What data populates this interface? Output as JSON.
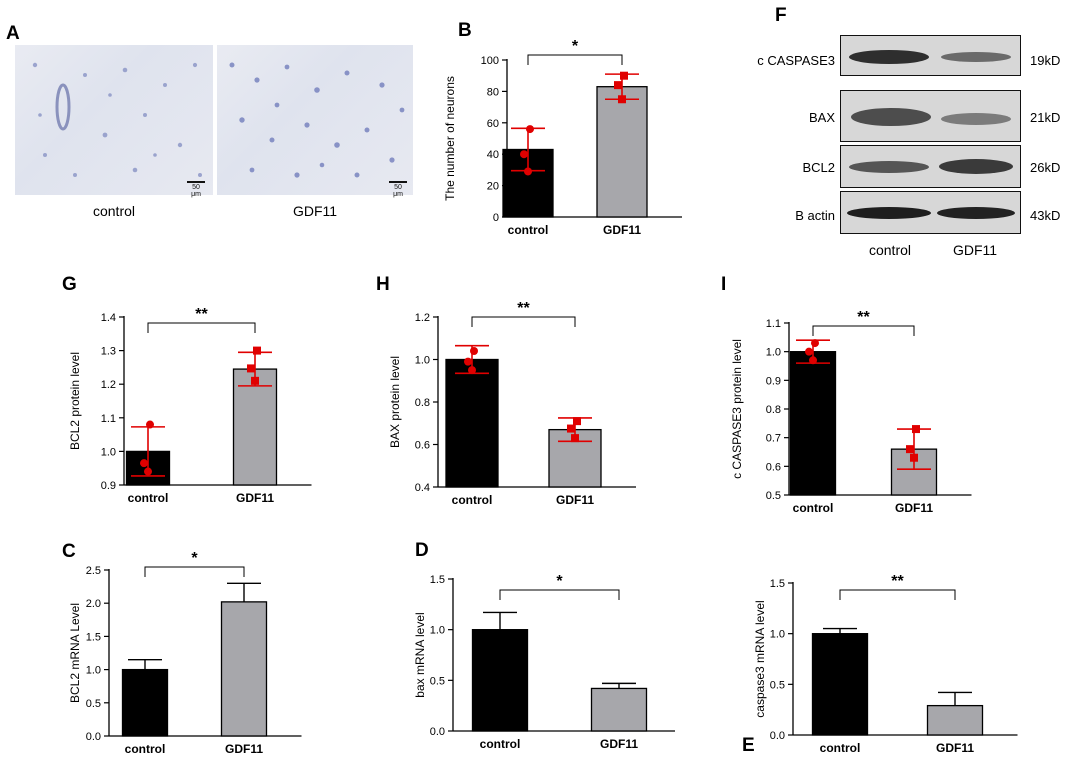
{
  "panels": {
    "A": {
      "letter": "A",
      "images": [
        {
          "caption": "control",
          "scale_bar": "50 μm"
        },
        {
          "caption": "GDF11",
          "scale_bar": "50 μm"
        }
      ]
    },
    "F": {
      "letter": "F",
      "proteins": [
        {
          "name": "c CASPASE3",
          "size": "19kD"
        },
        {
          "name": "BAX",
          "size": "21kD"
        },
        {
          "name": "BCL2",
          "size": "26kD"
        },
        {
          "name": "B actin",
          "size": "43kD"
        }
      ],
      "lanes": [
        "control",
        "GDF11"
      ]
    }
  },
  "chart_data": [
    {
      "id": "B",
      "letter": "B",
      "type": "bar",
      "categories": [
        "control",
        "GDF11"
      ],
      "values": [
        43,
        83
      ],
      "errors": [
        13.5,
        8
      ],
      "points": [
        [
          56,
          40,
          29
        ],
        [
          90,
          84,
          75
        ]
      ],
      "ylabel": "The number of neurons",
      "ylim": [
        0,
        100
      ],
      "yticks": [
        0,
        20,
        40,
        60,
        80,
        100
      ],
      "significance": "*",
      "colors": [
        "#000000",
        "#a7a7ab"
      ],
      "point_color": "#e00000"
    },
    {
      "id": "G",
      "letter": "G",
      "type": "bar",
      "categories": [
        "control",
        "GDF11"
      ],
      "values": [
        1.0,
        1.245
      ],
      "errors": [
        0.073,
        0.05
      ],
      "points": [
        [
          1.08,
          0.965,
          0.94
        ],
        [
          1.3,
          1.247,
          1.21
        ]
      ],
      "ylabel": "BCL2 protein level",
      "ylim": [
        0.9,
        1.4
      ],
      "yticks": [
        "0.9",
        "1.0",
        "1.1",
        "1.2",
        "1.3",
        "1.4"
      ],
      "significance": "**",
      "colors": [
        "#000000",
        "#a7a7ab"
      ],
      "point_color": "#e00000"
    },
    {
      "id": "H",
      "letter": "H",
      "type": "bar",
      "categories": [
        "control",
        "GDF11"
      ],
      "values": [
        1.0,
        0.67
      ],
      "errors": [
        0.065,
        0.055
      ],
      "points": [
        [
          1.04,
          0.99,
          0.95
        ],
        [
          0.71,
          0.675,
          0.63
        ]
      ],
      "ylabel": "BAX protein level",
      "ylim": [
        0.4,
        1.2
      ],
      "yticks": [
        "0.4",
        "0.6",
        "0.8",
        "1.0",
        "1.2"
      ],
      "significance": "**",
      "colors": [
        "#000000",
        "#a7a7ab"
      ],
      "point_color": "#e00000"
    },
    {
      "id": "I",
      "letter": "I",
      "type": "bar",
      "categories": [
        "control",
        "GDF11"
      ],
      "values": [
        1.0,
        0.66
      ],
      "errors": [
        0.04,
        0.07
      ],
      "points": [
        [
          1.03,
          1.0,
          0.97
        ],
        [
          0.73,
          0.66,
          0.63
        ]
      ],
      "ylabel": "c CASPASE3 protein level",
      "ylim": [
        0.5,
        1.1
      ],
      "yticks": [
        "0.5",
        "0.6",
        "0.7",
        "0.8",
        "0.9",
        "1.0",
        "1.1"
      ],
      "significance": "**",
      "colors": [
        "#000000",
        "#a7a7ab"
      ],
      "point_color": "#e00000"
    },
    {
      "id": "C",
      "letter": "C",
      "type": "bar",
      "categories": [
        "control",
        "GDF11"
      ],
      "values": [
        1.0,
        2.02
      ],
      "errors": [
        0.15,
        0.28
      ],
      "ylabel": "BCL2 mRNA Level",
      "ylim": [
        0,
        2.5
      ],
      "yticks": [
        "0.0",
        "0.5",
        "1.0",
        "1.5",
        "2.0",
        "2.5"
      ],
      "significance": "*",
      "colors": [
        "#000000",
        "#a7a7ab"
      ]
    },
    {
      "id": "D",
      "letter": "D",
      "type": "bar",
      "categories": [
        "control",
        "GDF11"
      ],
      "values": [
        1.0,
        0.42
      ],
      "errors": [
        0.17,
        0.05
      ],
      "ylabel": "bax mRNA level",
      "ylim": [
        0,
        1.5
      ],
      "yticks": [
        "0.0",
        "0.5",
        "1.0",
        "1.5"
      ],
      "significance": "*",
      "colors": [
        "#000000",
        "#a7a7ab"
      ]
    },
    {
      "id": "E",
      "letter": "E",
      "type": "bar",
      "categories": [
        "control",
        "GDF11"
      ],
      "values": [
        1.0,
        0.29
      ],
      "errors": [
        0.05,
        0.13
      ],
      "ylabel": "caspase3 mRNA level",
      "ylim": [
        0,
        1.5
      ],
      "yticks": [
        "0.0",
        "0.5",
        "1.0",
        "1.5"
      ],
      "significance": "**",
      "colors": [
        "#000000",
        "#a7a7ab"
      ]
    }
  ]
}
